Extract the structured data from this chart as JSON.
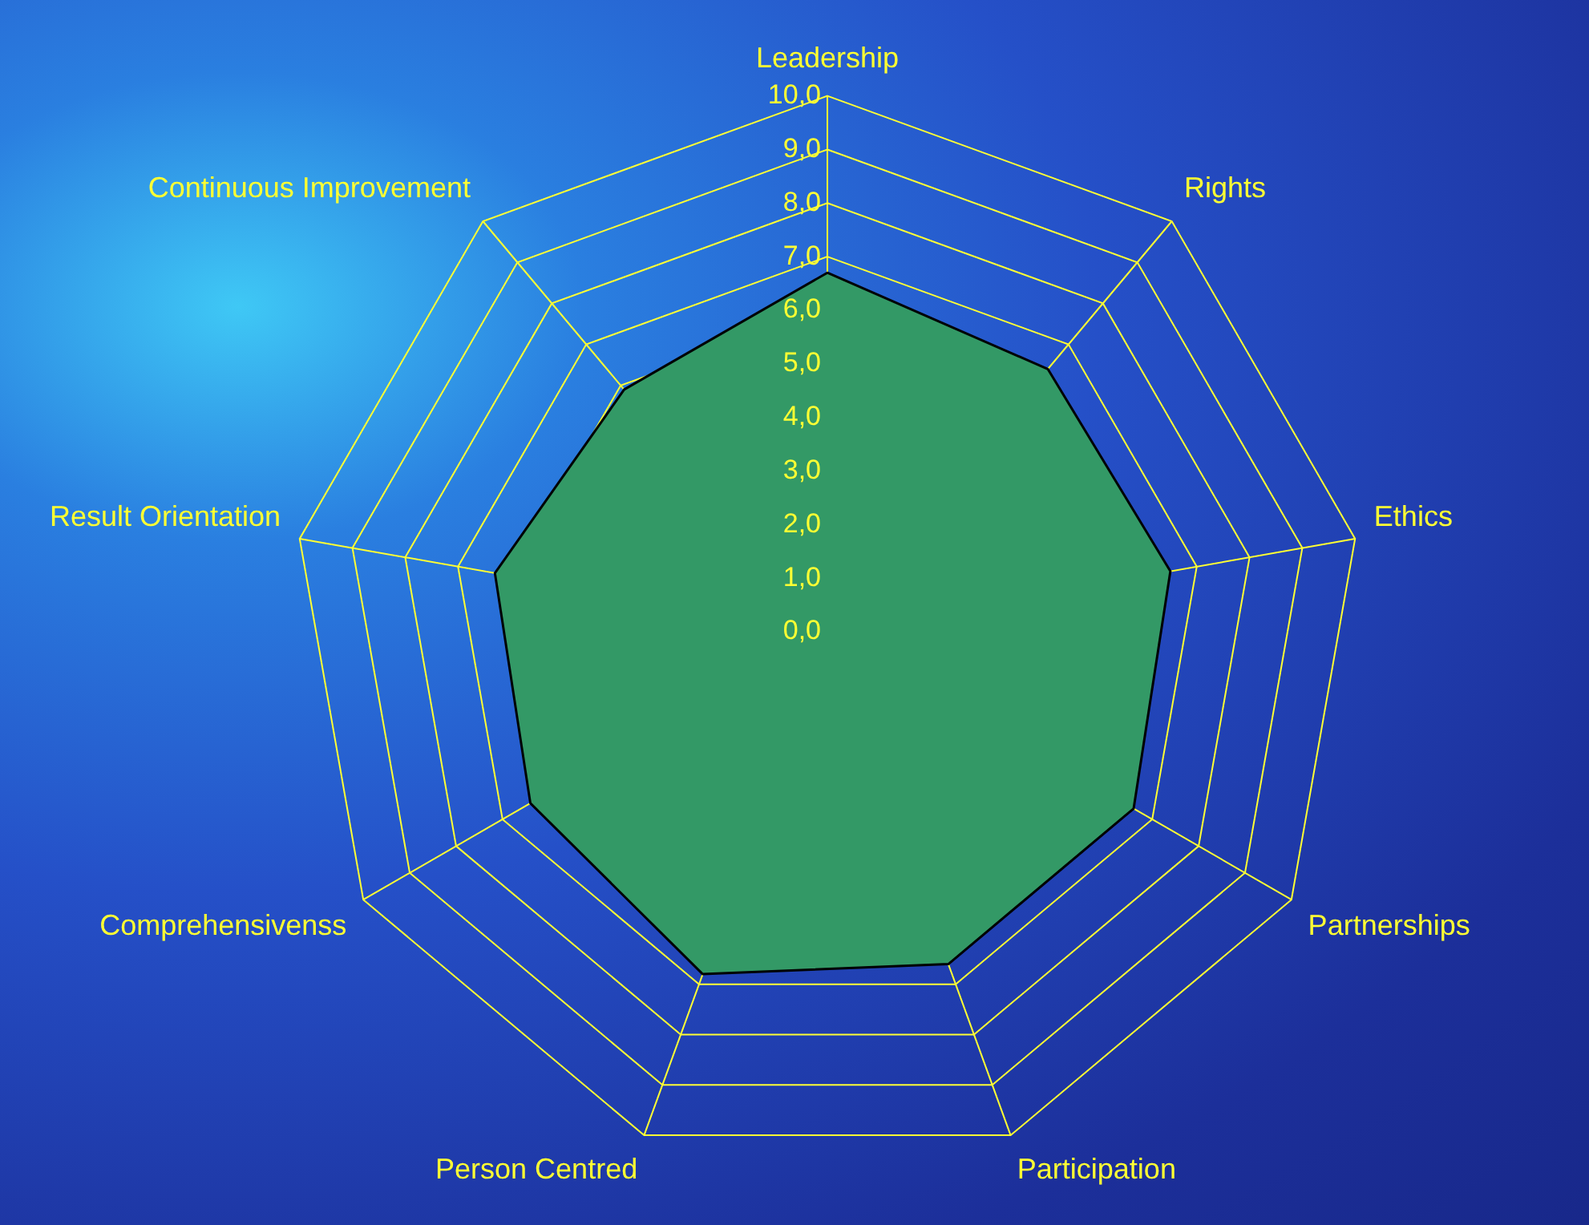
{
  "chart_data": {
    "type": "radar",
    "categories": [
      "Leadership",
      "Rights",
      "Ethics",
      "Partnerships",
      "Participation",
      "Person Centred",
      "Comprehensivenss",
      "Result Orientation",
      "Continuous Improvement"
    ],
    "series": [
      {
        "color": "#339966",
        "values": [
          6.7,
          6.4,
          6.5,
          6.6,
          6.6,
          6.8,
          6.4,
          6.3,
          5.9
        ]
      }
    ],
    "ylim": [
      0,
      10
    ],
    "yticks": [
      {
        "value": 0,
        "label": "0,0"
      },
      {
        "value": 1,
        "label": "1,0"
      },
      {
        "value": 2,
        "label": "2,0"
      },
      {
        "value": 3,
        "label": "3,0"
      },
      {
        "value": 4,
        "label": "4,0"
      },
      {
        "value": 5,
        "label": "5,0"
      },
      {
        "value": 6,
        "label": "6,0"
      },
      {
        "value": 7,
        "label": "7,0"
      },
      {
        "value": 8,
        "label": "8,0"
      },
      {
        "value": 9,
        "label": "9,0"
      },
      {
        "value": 10,
        "label": "10,0"
      }
    ],
    "grid": true,
    "legend": false,
    "marker": "none"
  }
}
